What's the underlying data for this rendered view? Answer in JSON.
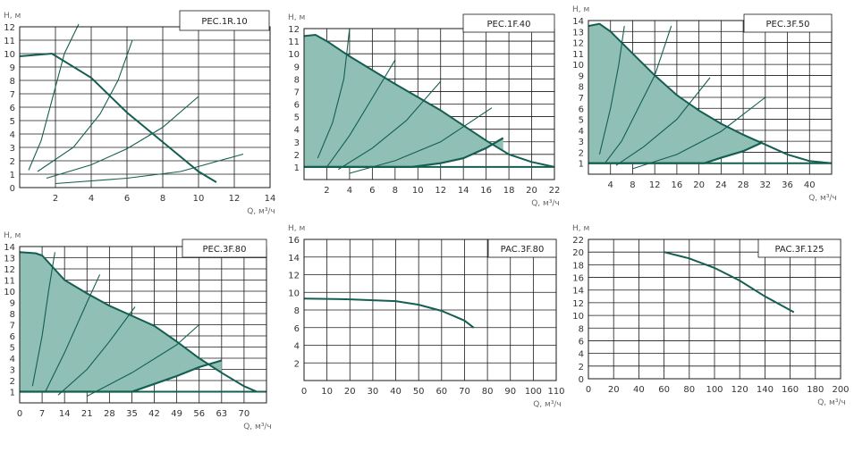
{
  "colors": {
    "curve": "#145f52",
    "fill": "#8fbfb5",
    "grid": "#1a1a1a"
  },
  "chart_data": [
    {
      "type": "line",
      "title": "PEC.1R.10",
      "ylabel": "H, м",
      "xlabel": "Q, м³/ч",
      "xlim": [
        0,
        14
      ],
      "ylim": [
        0,
        12
      ],
      "xticks": [
        2,
        4,
        6,
        8,
        10,
        12,
        14
      ],
      "yticks": [
        0,
        1,
        2,
        3,
        4,
        5,
        6,
        7,
        8,
        9,
        10,
        11,
        12
      ],
      "grid": true,
      "shaded": false,
      "curves": [
        {
          "points": [
            [
              0,
              9.8
            ],
            [
              1.8,
              10
            ],
            [
              4,
              8.2
            ],
            [
              6,
              5.6
            ],
            [
              8,
              3.4
            ],
            [
              10,
              1.2
            ],
            [
              11,
              0.4
            ]
          ]
        }
      ],
      "system_curves": [
        {
          "points": [
            [
              0.5,
              1.3
            ],
            [
              1.2,
              3.5
            ],
            [
              1.9,
              7
            ],
            [
              2.5,
              10
            ],
            [
              3.3,
              12.2
            ]
          ]
        },
        {
          "points": [
            [
              1,
              1.2
            ],
            [
              3,
              3
            ],
            [
              4.5,
              5.5
            ],
            [
              5.5,
              8
            ],
            [
              6.3,
              11
            ]
          ]
        },
        {
          "points": [
            [
              1.5,
              0.7
            ],
            [
              4,
              1.7
            ],
            [
              6,
              2.9
            ],
            [
              8,
              4.5
            ],
            [
              10,
              6.8
            ]
          ]
        },
        {
          "points": [
            [
              2,
              0.3
            ],
            [
              6,
              0.7
            ],
            [
              9,
              1.2
            ],
            [
              12.5,
              2.5
            ]
          ]
        }
      ]
    },
    {
      "type": "line",
      "title": "PEC.1F.40",
      "ylabel": "H, м",
      "xlabel": "Q, м³/ч",
      "xlim": [
        0,
        22
      ],
      "ylim": [
        0,
        12
      ],
      "xticks": [
        2,
        4,
        6,
        8,
        10,
        12,
        14,
        16,
        18,
        20,
        22
      ],
      "yticks": [
        1,
        2,
        3,
        4,
        5,
        6,
        7,
        8,
        9,
        10,
        11,
        12
      ],
      "grid": true,
      "shaded": true,
      "curves": [
        {
          "points": [
            [
              0,
              11.4
            ],
            [
              1,
              11.5
            ],
            [
              2,
              11
            ],
            [
              4,
              9.8
            ],
            [
              8,
              7.6
            ],
            [
              12,
              5.5
            ],
            [
              16,
              3.1
            ],
            [
              18,
              2
            ],
            [
              20,
              1.4
            ],
            [
              22,
              1
            ]
          ]
        }
      ],
      "lower_curve": {
        "points": [
          [
            0,
            1
          ],
          [
            9.5,
            1
          ],
          [
            12,
            1.3
          ],
          [
            14,
            1.7
          ],
          [
            16,
            2.5
          ],
          [
            17.5,
            3.3
          ]
        ]
      },
      "system_curves": [
        {
          "points": [
            [
              1.2,
              1.7
            ],
            [
              2.5,
              4.5
            ],
            [
              3.5,
              8
            ],
            [
              4,
              12
            ]
          ]
        },
        {
          "points": [
            [
              2,
              1
            ],
            [
              4,
              3.5
            ],
            [
              6,
              6.5
            ],
            [
              8,
              9.5
            ]
          ]
        },
        {
          "points": [
            [
              3,
              0.8
            ],
            [
              6,
              2.5
            ],
            [
              9,
              4.7
            ],
            [
              12,
              7.8
            ]
          ]
        },
        {
          "points": [
            [
              4,
              0.5
            ],
            [
              8,
              1.5
            ],
            [
              12,
              3
            ],
            [
              16.5,
              5.7
            ]
          ]
        }
      ]
    },
    {
      "type": "line",
      "title": "PEC.3F.50",
      "ylabel": "H, м",
      "xlabel": "Q, м³/ч",
      "xlim": [
        0,
        44
      ],
      "ylim": [
        0,
        14
      ],
      "xticks": [
        4,
        8,
        12,
        16,
        20,
        24,
        28,
        32,
        36,
        40
      ],
      "yticks": [
        1,
        2,
        3,
        4,
        5,
        6,
        7,
        8,
        9,
        10,
        11,
        12,
        13,
        14
      ],
      "grid": true,
      "shaded": true,
      "curves": [
        {
          "points": [
            [
              0,
              13.5
            ],
            [
              2,
              13.7
            ],
            [
              4,
              13
            ],
            [
              8,
              11
            ],
            [
              12,
              9
            ],
            [
              16,
              7.2
            ],
            [
              20,
              5.8
            ],
            [
              24,
              4.6
            ],
            [
              28,
              3.6
            ],
            [
              32,
              2.7
            ],
            [
              36,
              1.8
            ],
            [
              40,
              1.2
            ],
            [
              44,
              1
            ]
          ]
        }
      ],
      "lower_curve": {
        "points": [
          [
            0,
            1
          ],
          [
            21,
            1
          ],
          [
            24,
            1.5
          ],
          [
            28,
            2.1
          ],
          [
            31.5,
            2.9
          ]
        ]
      },
      "system_curves": [
        {
          "points": [
            [
              2,
              1.8
            ],
            [
              4,
              6
            ],
            [
              5.5,
              10
            ],
            [
              6.5,
              13.5
            ]
          ]
        },
        {
          "points": [
            [
              3,
              1
            ],
            [
              6,
              3
            ],
            [
              9,
              6
            ],
            [
              12,
              9
            ],
            [
              15,
              13.5
            ]
          ]
        },
        {
          "points": [
            [
              5,
              0.8
            ],
            [
              10,
              2.5
            ],
            [
              16,
              5
            ],
            [
              22,
              8.8
            ]
          ]
        },
        {
          "points": [
            [
              8,
              0.5
            ],
            [
              16,
              1.8
            ],
            [
              24,
              3.9
            ],
            [
              32,
              7
            ]
          ]
        }
      ]
    },
    {
      "type": "line",
      "title": "PEC.3F.80",
      "ylabel": "H, м",
      "xlabel": "Q, м³/ч",
      "xlim": [
        0,
        77
      ],
      "ylim": [
        0,
        14
      ],
      "xticks": [
        0,
        7,
        14,
        21,
        28,
        35,
        42,
        49,
        56,
        63,
        70
      ],
      "yticks": [
        1,
        2,
        3,
        4,
        5,
        6,
        7,
        8,
        9,
        10,
        11,
        12,
        13,
        14
      ],
      "grid": true,
      "shaded": true,
      "curves": [
        {
          "points": [
            [
              0,
              13.5
            ],
            [
              5,
              13.4
            ],
            [
              7,
              13.2
            ],
            [
              14,
              11
            ],
            [
              21,
              9.8
            ],
            [
              28,
              8.7
            ],
            [
              35,
              7.8
            ],
            [
              42,
              6.9
            ],
            [
              49,
              5.5
            ],
            [
              56,
              4
            ],
            [
              63,
              2.7
            ],
            [
              70,
              1.5
            ],
            [
              74,
              1
            ]
          ]
        }
      ],
      "lower_curve": {
        "points": [
          [
            0,
            1
          ],
          [
            35,
            1
          ],
          [
            42,
            1.7
          ],
          [
            49,
            2.4
          ],
          [
            56,
            3.2
          ],
          [
            63,
            3.8
          ]
        ]
      },
      "system_curves": [
        {
          "points": [
            [
              4,
              1.5
            ],
            [
              7,
              6
            ],
            [
              9,
              10
            ],
            [
              11,
              13.5
            ]
          ]
        },
        {
          "points": [
            [
              8,
              1
            ],
            [
              14,
              4.5
            ],
            [
              21,
              9
            ],
            [
              25,
              11.5
            ]
          ]
        },
        {
          "points": [
            [
              12,
              0.7
            ],
            [
              21,
              3
            ],
            [
              28,
              5.5
            ],
            [
              36,
              8.6
            ]
          ]
        },
        {
          "points": [
            [
              21,
              0.6
            ],
            [
              35,
              2.7
            ],
            [
              49,
              5.2
            ],
            [
              56,
              7
            ]
          ]
        }
      ]
    },
    {
      "type": "line",
      "title": "PAC.3F.80",
      "ylabel": "H, м",
      "xlabel": "Q, м³/ч",
      "xlim": [
        0,
        110
      ],
      "ylim": [
        0,
        16
      ],
      "xticks": [
        0,
        10,
        20,
        30,
        40,
        50,
        60,
        70,
        80,
        90,
        100,
        110
      ],
      "yticks": [
        2,
        4,
        6,
        8,
        10,
        12,
        14,
        16
      ],
      "grid": true,
      "shaded": false,
      "curves": [
        {
          "points": [
            [
              0,
              9.3
            ],
            [
              20,
              9.2
            ],
            [
              40,
              9
            ],
            [
              50,
              8.6
            ],
            [
              60,
              7.9
            ],
            [
              70,
              6.8
            ],
            [
              74,
              6
            ]
          ]
        }
      ]
    },
    {
      "type": "line",
      "title": "PAC.3F.125",
      "ylabel": "H, м",
      "xlabel": "Q, м³/ч",
      "xlim": [
        0,
        200
      ],
      "ylim": [
        0,
        22
      ],
      "xticks": [
        0,
        20,
        40,
        60,
        80,
        100,
        120,
        140,
        160,
        180,
        200
      ],
      "yticks": [
        0,
        2,
        4,
        6,
        8,
        10,
        12,
        14,
        16,
        18,
        20,
        22
      ],
      "grid": true,
      "shaded": false,
      "curves": [
        {
          "points": [
            [
              60,
              20
            ],
            [
              80,
              19
            ],
            [
              100,
              17.5
            ],
            [
              120,
              15.5
            ],
            [
              140,
              13
            ],
            [
              163,
              10.5
            ]
          ]
        }
      ]
    }
  ]
}
